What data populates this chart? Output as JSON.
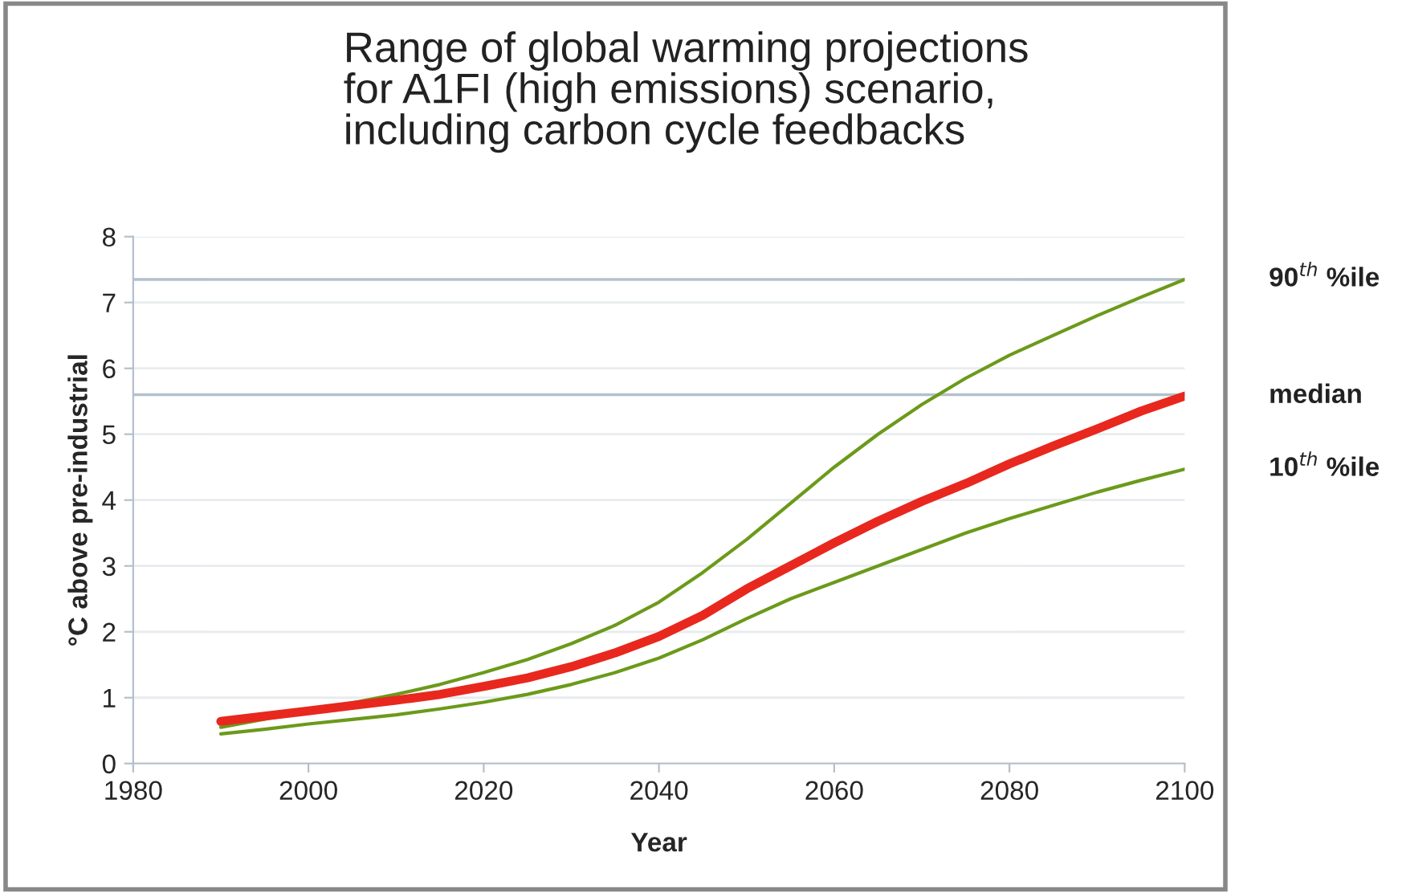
{
  "chart_data": {
    "type": "line",
    "title": "Range of global warming projections\nfor A1FI (high emissions) scenario,\nincluding carbon cycle feedbacks",
    "xlabel": "Year",
    "ylabel": "°C above pre-industrial",
    "xlim": [
      1980,
      2100
    ],
    "xticks": [
      1980,
      2000,
      2020,
      2040,
      2060,
      2080,
      2100
    ],
    "ylim": [
      0,
      8
    ],
    "yticks": [
      0,
      1,
      2,
      3,
      4,
      5,
      6,
      7,
      8
    ],
    "grid": "y",
    "legend": false,
    "marker": "none",
    "line_style": "solid",
    "x": [
      1990,
      1995,
      2000,
      2005,
      2010,
      2015,
      2020,
      2025,
      2030,
      2035,
      2040,
      2045,
      2050,
      2055,
      2060,
      2065,
      2070,
      2075,
      2080,
      2085,
      2090,
      2095,
      2100
    ],
    "ref_lines": [
      {
        "axis": "y",
        "value": 7.35,
        "color": "#b4c0cc"
      },
      {
        "axis": "y",
        "value": 5.6,
        "color": "#b4c0cc"
      }
    ],
    "series": [
      {
        "name": "90$^{th}$ %ile",
        "color": "#6b9a1a",
        "values": [
          0.55,
          null,
          null,
          0.92,
          1.05,
          1.2,
          1.38,
          1.58,
          1.82,
          2.1,
          2.45,
          2.9,
          3.4,
          3.95,
          4.5,
          5.0,
          5.45,
          5.85,
          6.2,
          6.5,
          6.8,
          7.08,
          7.35
        ]
      },
      {
        "name": "median",
        "color": "#e8281e",
        "values": [
          0.64,
          0.72,
          0.8,
          0.88,
          0.96,
          1.05,
          1.17,
          1.3,
          1.47,
          1.68,
          1.93,
          2.25,
          2.65,
          3.0,
          3.35,
          3.68,
          3.98,
          4.25,
          4.55,
          4.82,
          5.08,
          5.35,
          5.58
        ]
      },
      {
        "name": "10$^{th}$ %ile",
        "color": "#6b9a1a",
        "values": [
          0.45,
          0.52,
          0.6,
          0.67,
          0.74,
          0.83,
          0.93,
          1.05,
          1.2,
          1.38,
          1.6,
          1.88,
          2.2,
          2.5,
          2.75,
          3.0,
          3.25,
          3.5,
          3.72,
          3.92,
          4.12,
          4.3,
          4.47
        ]
      }
    ]
  }
}
